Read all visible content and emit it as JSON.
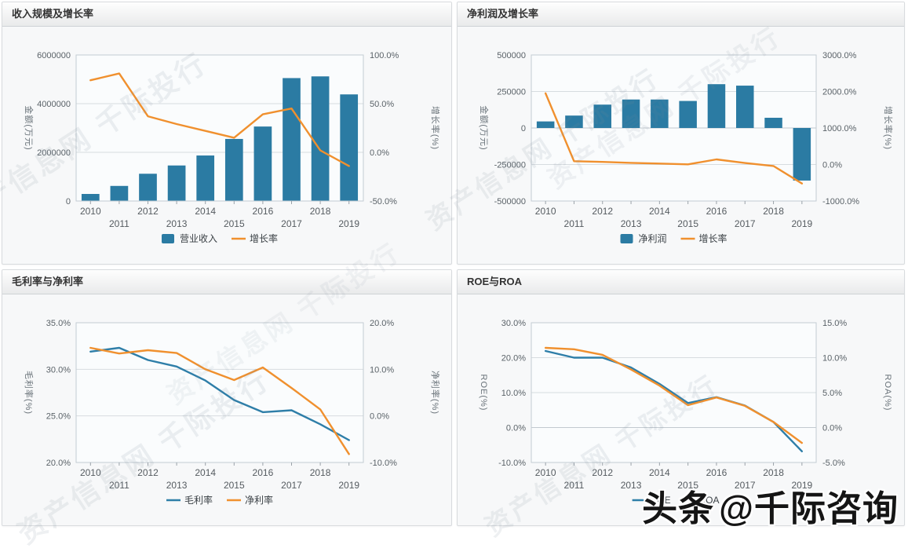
{
  "page": {
    "watermark_text": "资产信息网 千际投行",
    "brand": {
      "prefix": "头条",
      "handle": "@千际咨询"
    }
  },
  "colors": {
    "bar_blue": "#2b7ba3",
    "line_blue": "#2e7ea8",
    "line_orange": "#f0902e",
    "grid_line": "#d7dce0",
    "plot_border": "#c3cbd2",
    "plot_bg": "#fafcfd"
  },
  "chart_data": [
    {
      "type": "combo_bar_line",
      "title": "收入规模及增长率",
      "categories": [
        "2010",
        "2011",
        "2012",
        "2013",
        "2014",
        "2015",
        "2016",
        "2017",
        "2018",
        "2019"
      ],
      "series": [
        {
          "name": "营业收入",
          "kind": "bar",
          "axis": "left",
          "color": "#2b7ba3",
          "values": [
            290000,
            620000,
            1120000,
            1460000,
            1870000,
            2550000,
            3060000,
            5050000,
            5120000,
            4380000
          ]
        },
        {
          "name": "增长率",
          "kind": "line",
          "axis": "right",
          "color": "#f0902e",
          "values": [
            74,
            81,
            37,
            29,
            22,
            15,
            39,
            45,
            2,
            -14
          ]
        }
      ],
      "left_axis": {
        "label": "金额(万元)",
        "min": 0,
        "max": 6000000,
        "ticks": [
          0,
          2000000,
          4000000,
          6000000
        ],
        "tick_labels": [
          "0",
          "2000000",
          "4000000",
          "6000000"
        ]
      },
      "right_axis": {
        "label": "增长率(%)",
        "min": -50,
        "max": 100,
        "ticks": [
          -50,
          0,
          50,
          100
        ],
        "tick_labels": [
          "-50.0%",
          "0.0%",
          "50.0%",
          "100.0%"
        ]
      },
      "legend": [
        "营业收入",
        "增长率"
      ],
      "grid": true,
      "legend_position": "bottom"
    },
    {
      "type": "combo_bar_line",
      "title": "净利润及增长率",
      "categories": [
        "2010",
        "2011",
        "2012",
        "2013",
        "2014",
        "2015",
        "2016",
        "2017",
        "2018",
        "2019"
      ],
      "series": [
        {
          "name": "净利润",
          "kind": "bar",
          "axis": "left",
          "color": "#2b7ba3",
          "values": [
            45000,
            85000,
            160000,
            195000,
            195000,
            185000,
            300000,
            290000,
            70000,
            -360000
          ]
        },
        {
          "name": "增长率",
          "kind": "line",
          "axis": "right",
          "color": "#f0902e",
          "values": [
            1950,
            90,
            70,
            45,
            25,
            5,
            140,
            40,
            -40,
            -520
          ]
        }
      ],
      "left_axis": {
        "label": "金额(万元)",
        "min": -500000,
        "max": 500000,
        "ticks": [
          -500000,
          -250000,
          0,
          250000,
          500000
        ],
        "tick_labels": [
          "-500000",
          "-250000",
          "0",
          "250000",
          "500000"
        ]
      },
      "right_axis": {
        "label": "增长率(%)",
        "min": -1000,
        "max": 3000,
        "ticks": [
          -1000,
          0,
          1000,
          2000,
          3000
        ],
        "tick_labels": [
          "-1000.0%",
          "0.0%",
          "1000.0%",
          "2000.0%",
          "3000.0%"
        ]
      },
      "legend": [
        "净利润",
        "增长率"
      ],
      "grid": true,
      "legend_position": "bottom"
    },
    {
      "type": "line",
      "title": "毛利率与净利率",
      "categories": [
        "2010",
        "2011",
        "2012",
        "2013",
        "2014",
        "2015",
        "2016",
        "2017",
        "2018",
        "2019"
      ],
      "series": [
        {
          "name": "毛利率",
          "kind": "line",
          "axis": "left",
          "color": "#2e7ea8",
          "values": [
            31.9,
            32.3,
            31.0,
            30.3,
            28.8,
            26.7,
            25.4,
            25.6,
            24.1,
            22.4
          ]
        },
        {
          "name": "净利率",
          "kind": "line",
          "axis": "right",
          "color": "#f0902e",
          "values": [
            14.6,
            13.4,
            14.1,
            13.5,
            10.0,
            7.7,
            10.4,
            6.0,
            1.4,
            -8.2
          ]
        }
      ],
      "left_axis": {
        "label": "毛利率(%)",
        "min": 20,
        "max": 35,
        "ticks": [
          20,
          25,
          30,
          35
        ],
        "tick_labels": [
          "20.0%",
          "25.0%",
          "30.0%",
          "35.0%"
        ]
      },
      "right_axis": {
        "label": "净利率(%)",
        "min": -10,
        "max": 20,
        "ticks": [
          -10,
          0,
          10,
          20
        ],
        "tick_labels": [
          "-10.0%",
          "0.0%",
          "10.0%",
          "20.0%"
        ]
      },
      "legend": [
        "毛利率",
        "净利率"
      ],
      "grid": true,
      "legend_position": "bottom"
    },
    {
      "type": "line",
      "title": "ROE与ROA",
      "categories": [
        "2010",
        "2011",
        "2012",
        "2013",
        "2014",
        "2015",
        "2016",
        "2017",
        "2018",
        "2019"
      ],
      "series": [
        {
          "name": "ROE",
          "kind": "line",
          "axis": "left",
          "color": "#2e7ea8",
          "values": [
            21.9,
            20.0,
            20.0,
            17.2,
            12.5,
            7.0,
            8.7,
            6.3,
            1.6,
            -6.8
          ]
        },
        {
          "name": "ROA",
          "kind": "line",
          "axis": "right",
          "color": "#f0902e",
          "values": [
            11.4,
            11.2,
            10.4,
            8.3,
            6.0,
            3.2,
            4.3,
            3.1,
            0.8,
            -2.2
          ]
        }
      ],
      "left_axis": {
        "label": "ROE(%)",
        "min": -10,
        "max": 30,
        "ticks": [
          -10,
          0,
          10,
          20,
          30
        ],
        "tick_labels": [
          "-10.0%",
          "0.0%",
          "10.0%",
          "20.0%",
          "30.0%"
        ]
      },
      "right_axis": {
        "label": "ROA(%)",
        "min": -5,
        "max": 15,
        "ticks": [
          -5,
          0,
          5,
          10,
          15
        ],
        "tick_labels": [
          "-5.0%",
          "0.0%",
          "5.0%",
          "10.0%",
          "15.0%"
        ]
      },
      "legend": [
        "ROE",
        "ROA"
      ],
      "grid": true,
      "legend_position": "bottom"
    }
  ]
}
